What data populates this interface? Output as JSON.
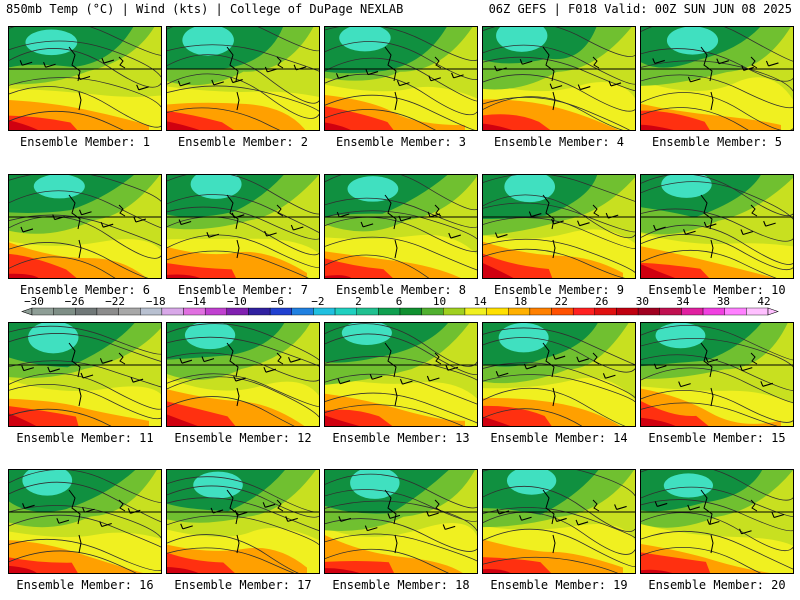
{
  "header": {
    "left": "850mb Temp (°C) | Wind (kts) | College of DuPage NEXLAB",
    "right": "06Z GEFS | F018 Valid: 00Z SUN JUN 08 2025"
  },
  "panels": [
    {
      "label": "Ensemble Member: 1"
    },
    {
      "label": "Ensemble Member: 2"
    },
    {
      "label": "Ensemble Member: 3"
    },
    {
      "label": "Ensemble Member: 4"
    },
    {
      "label": "Ensemble Member: 5"
    },
    {
      "label": "Ensemble Member: 6"
    },
    {
      "label": "Ensemble Member: 7"
    },
    {
      "label": "Ensemble Member: 8"
    },
    {
      "label": "Ensemble Member: 9"
    },
    {
      "label": "Ensemble Member: 10"
    },
    {
      "label": "Ensemble Member: 11"
    },
    {
      "label": "Ensemble Member: 12"
    },
    {
      "label": "Ensemble Member: 13"
    },
    {
      "label": "Ensemble Member: 14"
    },
    {
      "label": "Ensemble Member: 15"
    },
    {
      "label": "Ensemble Member: 16"
    },
    {
      "label": "Ensemble Member: 17"
    },
    {
      "label": "Ensemble Member: 18"
    },
    {
      "label": "Ensemble Member: 19"
    },
    {
      "label": "Ensemble Member: 20"
    }
  ],
  "colorbar": {
    "labels": [
      "−30",
      "−26",
      "−22",
      "−18",
      "−14",
      "−10",
      "−6",
      "−2",
      "2",
      "6",
      "10",
      "14",
      "18",
      "22",
      "26",
      "30",
      "34",
      "38",
      "42"
    ],
    "colors": [
      "#8e9e96",
      "#7e8e86",
      "#707878",
      "#8c8c8c",
      "#a8a8a8",
      "#b8c0d0",
      "#d8a8e8",
      "#e070e0",
      "#c040d0",
      "#8020b0",
      "#3020a0",
      "#2040d0",
      "#2080e0",
      "#20c0e0",
      "#20d0c0",
      "#20c090",
      "#10a050",
      "#109030",
      "#50b030",
      "#a0d020",
      "#f0f020",
      "#ffe000",
      "#ffb000",
      "#ff8000",
      "#ff5000",
      "#ff2020",
      "#e01010",
      "#c00010",
      "#a00020",
      "#c01050",
      "#e020a0",
      "#f040e0",
      "#ff80ff",
      "#ffc0ff"
    ]
  },
  "palette": {
    "cold": "#40e0c0",
    "cool": "#109040",
    "mid": "#70c030",
    "mild": "#c8e020",
    "warm": "#f0f020",
    "hot": "#ffa000",
    "veryhot": "#ff3010",
    "extreme": "#d00010"
  }
}
